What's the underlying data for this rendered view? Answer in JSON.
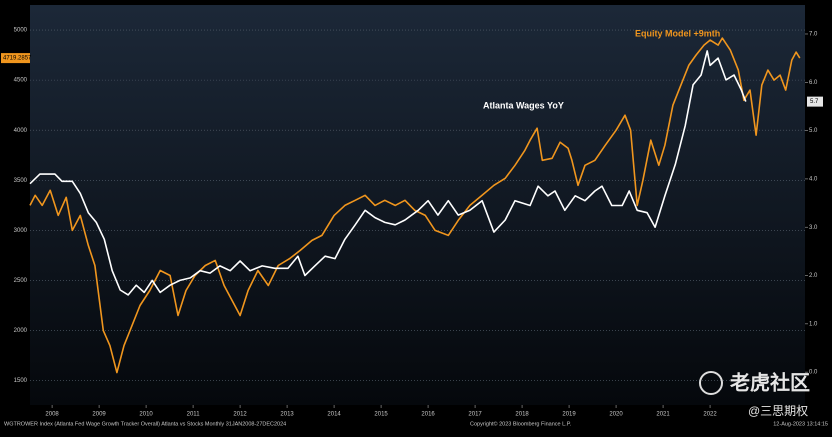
{
  "chart_data": {
    "type": "line",
    "series": [
      {
        "name": "Equity Model +9mth",
        "color": "#f0961e",
        "axis": "y",
        "tag": "4719.2857",
        "x": [
          2008.03,
          2008.14,
          2008.29,
          2008.46,
          2008.63,
          2008.8,
          2008.93,
          2009.1,
          2009.27,
          2009.41,
          2009.59,
          2009.73,
          2009.88,
          2010.03,
          2010.2,
          2010.37,
          2010.58,
          2010.8,
          2011.01,
          2011.18,
          2011.35,
          2011.54,
          2011.76,
          2011.97,
          2012.16,
          2012.33,
          2012.5,
          2012.67,
          2012.88,
          2013.1,
          2013.31,
          2013.56,
          2013.78,
          2014.03,
          2014.24,
          2014.5,
          2014.73,
          2014.95,
          2015.16,
          2015.37,
          2015.58,
          2015.8,
          2016.01,
          2016.22,
          2016.44,
          2016.65,
          2016.93,
          2017.14,
          2017.39,
          2017.65,
          2017.9,
          2018.14,
          2018.35,
          2018.56,
          2018.67,
          2018.82,
          2018.93,
          2019.14,
          2019.31,
          2019.48,
          2019.56,
          2019.69,
          2019.84,
          2020.05,
          2020.27,
          2020.5,
          2020.69,
          2020.81,
          2020.95,
          2021.07,
          2021.24,
          2021.41,
          2021.54,
          2021.71,
          2021.88,
          2022.05,
          2022.2,
          2022.37,
          2022.5,
          2022.67,
          2022.76,
          2022.93,
          2023.1,
          2023.22,
          2023.35,
          2023.48,
          2023.6,
          2023.73,
          2023.86,
          2023.99,
          2024.11,
          2024.24,
          2024.33,
          2024.41
        ],
        "values": [
          3250,
          3350,
          3250,
          3400,
          3150,
          3330,
          3000,
          3150,
          2850,
          2650,
          2000,
          1850,
          1580,
          1850,
          2050,
          2250,
          2400,
          2600,
          2550,
          2150,
          2400,
          2550,
          2650,
          2700,
          2450,
          2300,
          2150,
          2400,
          2600,
          2450,
          2650,
          2720,
          2800,
          2900,
          2950,
          3150,
          3250,
          3300,
          3350,
          3250,
          3300,
          3250,
          3300,
          3200,
          3150,
          3000,
          2950,
          3100,
          3250,
          3350,
          3450,
          3520,
          3650,
          3800,
          3900,
          4020,
          3700,
          3720,
          3880,
          3820,
          3700,
          3450,
          3650,
          3700,
          3850,
          4000,
          4150,
          4000,
          3250,
          3500,
          3900,
          3650,
          3850,
          4250,
          4450,
          4650,
          4750,
          4850,
          4900,
          4850,
          4920,
          4800,
          4600,
          4300,
          4400,
          3950,
          4450,
          4600,
          4500,
          4550,
          4400,
          4700,
          4780,
          4720
        ]
      },
      {
        "name": "Atlanta Wages YoY",
        "color": "#ffffff",
        "axis": "y2",
        "tag": "5.7",
        "x": [
          2008.03,
          2008.24,
          2008.56,
          2008.71,
          2008.93,
          2009.1,
          2009.27,
          2009.44,
          2009.61,
          2009.78,
          2009.95,
          2010.12,
          2010.29,
          2010.46,
          2010.63,
          2010.8,
          2011.01,
          2011.22,
          2011.44,
          2011.65,
          2011.86,
          2012.07,
          2012.29,
          2012.5,
          2012.71,
          2012.97,
          2013.24,
          2013.52,
          2013.73,
          2013.88,
          2014.09,
          2014.31,
          2014.52,
          2014.73,
          2014.95,
          2015.16,
          2015.37,
          2015.58,
          2015.8,
          2016.01,
          2016.29,
          2016.5,
          2016.71,
          2016.93,
          2017.14,
          2017.39,
          2017.65,
          2017.9,
          2018.14,
          2018.35,
          2018.67,
          2018.84,
          2019.05,
          2019.2,
          2019.41,
          2019.63,
          2019.84,
          2020.05,
          2020.2,
          2020.41,
          2020.63,
          2020.78,
          2020.95,
          2021.16,
          2021.33,
          2021.54,
          2021.76,
          2021.97,
          2022.14,
          2022.31,
          2022.44,
          2022.5,
          2022.67,
          2022.84,
          2023.01,
          2023.16,
          2023.26
        ],
        "values": [
          3.9,
          4.1,
          4.1,
          3.95,
          3.95,
          3.7,
          3.3,
          3.1,
          2.75,
          2.1,
          1.7,
          1.6,
          1.8,
          1.65,
          1.9,
          1.65,
          1.8,
          1.9,
          1.95,
          2.1,
          2.05,
          2.2,
          2.1,
          2.3,
          2.1,
          2.2,
          2.15,
          2.15,
          2.4,
          2.0,
          2.2,
          2.4,
          2.35,
          2.75,
          3.05,
          3.35,
          3.2,
          3.1,
          3.05,
          3.15,
          3.35,
          3.55,
          3.25,
          3.55,
          3.25,
          3.35,
          3.55,
          2.9,
          3.15,
          3.55,
          3.45,
          3.85,
          3.65,
          3.75,
          3.35,
          3.65,
          3.55,
          3.75,
          3.85,
          3.45,
          3.45,
          3.75,
          3.35,
          3.3,
          3.0,
          3.65,
          4.3,
          5.1,
          5.95,
          6.15,
          6.65,
          6.35,
          6.5,
          6.05,
          6.15,
          5.85,
          5.6
        ]
      }
    ],
    "xlim": [
      2008.03,
      2024.52
    ],
    "xticks": [
      {
        "value": 2008.5,
        "label": "2008"
      },
      {
        "value": 2009.5,
        "label": "2009"
      },
      {
        "value": 2010.5,
        "label": "2010"
      },
      {
        "value": 2011.5,
        "label": "2011"
      },
      {
        "value": 2012.5,
        "label": "2012"
      },
      {
        "value": 2013.5,
        "label": "2013"
      },
      {
        "value": 2014.5,
        "label": "2014"
      },
      {
        "value": 2015.5,
        "label": "2015"
      },
      {
        "value": 2016.5,
        "label": "2016"
      },
      {
        "value": 2017.5,
        "label": "2017"
      },
      {
        "value": 2018.5,
        "label": "2018"
      },
      {
        "value": 2019.5,
        "label": "2019"
      },
      {
        "value": 2020.5,
        "label": "2020"
      },
      {
        "value": 2021.5,
        "label": "2021"
      },
      {
        "value": 2022.5,
        "label": "2022"
      }
    ],
    "ylim": [
      1257,
      5250
    ],
    "yticks": [
      1500,
      2000,
      2500,
      3000,
      3500,
      4000,
      4500,
      5000
    ],
    "y2lim": [
      -0.68,
      7.6
    ],
    "y2ticks": [
      {
        "value": 0,
        "label": "0.0"
      },
      {
        "value": 1,
        "label": "1.0"
      },
      {
        "value": 2,
        "label": "2.0"
      },
      {
        "value": 3,
        "label": "3.0"
      },
      {
        "value": 4,
        "label": "4.0"
      },
      {
        "value": 5,
        "label": "5.0"
      },
      {
        "value": 6,
        "label": "6.0"
      },
      {
        "value": 7,
        "label": "7.0"
      }
    ],
    "grid": true,
    "footer": {
      "source": "WGTROWER Index (Atlanta Fed Wage Growth Tracker Overall) Atlanta vs Stocks  Monthly 31JAN2008-27DEC2024",
      "copyright": "Copyright© 2023 Bloomberg Finance L.P.",
      "timestamp": "12-Aug-2023 13:14:15"
    },
    "watermark": {
      "main": "老虎社区",
      "sub": "@三思期权"
    }
  }
}
